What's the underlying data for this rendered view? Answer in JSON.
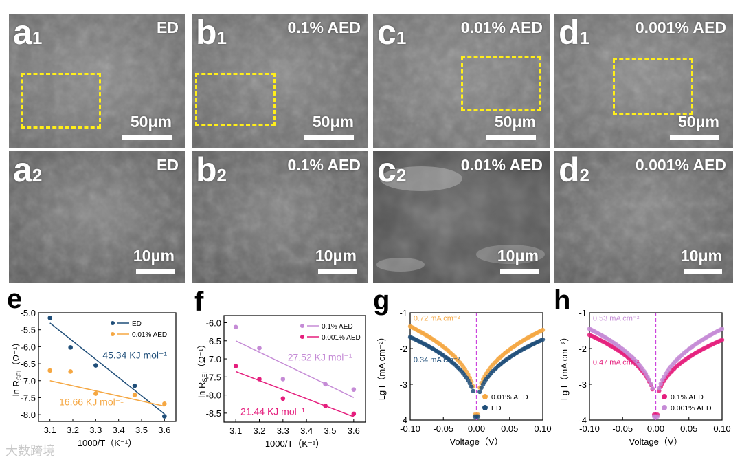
{
  "sem_panels": [
    {
      "letter": "a",
      "sub": "1",
      "condition": "ED",
      "scale": "50μm"
    },
    {
      "letter": "b",
      "sub": "1",
      "condition": "0.1% AED",
      "scale": "50μm"
    },
    {
      "letter": "c",
      "sub": "1",
      "condition": "0.01% AED",
      "scale": "50μm"
    },
    {
      "letter": "d",
      "sub": "1",
      "condition": "0.001% AED",
      "scale": "50μm"
    },
    {
      "letter": "a",
      "sub": "2",
      "condition": "ED",
      "scale": "10μm"
    },
    {
      "letter": "b",
      "sub": "2",
      "condition": "0.1% AED",
      "scale": "10μm"
    },
    {
      "letter": "c",
      "sub": "2",
      "condition": "0.01% AED",
      "scale": "10μm"
    },
    {
      "letter": "d",
      "sub": "2",
      "condition": "0.001% AED",
      "scale": "10μm"
    }
  ],
  "colors": {
    "navy": "#1f4e79",
    "orange": "#f5a742",
    "violet": "#c58bd6",
    "magenta": "#e51e7d",
    "guide": "#cc44dd",
    "roi": "#ffee1a"
  },
  "watermark": "大数跨境",
  "chart_data": [
    {
      "panel": "e",
      "type": "scatter",
      "xlabel": "1000/T（K⁻¹）",
      "ylabel_main": "ln R",
      "ylabel_sub": "SEI",
      "ylabel_unit": "（Ω⁻¹）",
      "xlim": [
        3.05,
        3.65
      ],
      "ylim": [
        -8.2,
        -5.0
      ],
      "xticks": [
        "3.1",
        "3.2",
        "3.3",
        "3.4",
        "3.5",
        "3.6"
      ],
      "xtick_values": [
        3.1,
        3.2,
        3.3,
        3.4,
        3.5,
        3.6
      ],
      "yticks": [
        "-5.0",
        "-5.5",
        "-6.0",
        "-6.5",
        "-7.0",
        "-7.5",
        "-8.0"
      ],
      "ytick_values": [
        -5.0,
        -5.5,
        -6.0,
        -6.5,
        -7.0,
        -7.5,
        -8.0
      ],
      "series": [
        {
          "name": "ED",
          "color": "#1f4e79",
          "x": [
            3.1,
            3.19,
            3.3,
            3.47,
            3.6
          ],
          "y": [
            -5.15,
            -6.02,
            -6.55,
            -7.15,
            -8.05
          ],
          "fit": [
            [
              3.1,
              -5.3
            ],
            [
              3.6,
              -7.98
            ]
          ]
        },
        {
          "name": "0.01% AED",
          "color": "#f5a742",
          "x": [
            3.1,
            3.19,
            3.3,
            3.47,
            3.6
          ],
          "y": [
            -6.7,
            -6.73,
            -7.38,
            -7.42,
            -7.68
          ],
          "fit": [
            [
              3.1,
              -7.0
            ],
            [
              3.6,
              -7.75
            ]
          ]
        }
      ],
      "annotations": [
        {
          "text": "45.34 KJ mol⁻¹",
          "color": "#1f4e79",
          "x": 3.33,
          "y": -6.35
        },
        {
          "text": "16.66 KJ mol⁻¹",
          "color": "#f5a742",
          "x": 3.14,
          "y": -7.72
        }
      ]
    },
    {
      "panel": "f",
      "type": "scatter",
      "xlabel": "1000/T（K⁻¹）",
      "ylabel_main": "ln R",
      "ylabel_sub": "SEI",
      "ylabel_unit": "（Ω⁻¹）",
      "xlim": [
        3.05,
        3.65
      ],
      "ylim": [
        -8.75,
        -5.8
      ],
      "xticks": [
        "3.1",
        "3.2",
        "3.3",
        "3.4",
        "3.5",
        "3.6"
      ],
      "xtick_values": [
        3.1,
        3.2,
        3.3,
        3.4,
        3.5,
        3.6
      ],
      "yticks": [
        "-6.0",
        "-6.5",
        "-7.0",
        "-7.5",
        "-8.0",
        "-8.5"
      ],
      "ytick_values": [
        -6.0,
        -6.5,
        -7.0,
        -7.5,
        -8.0,
        -8.5
      ],
      "series": [
        {
          "name": "0.1% AED",
          "color": "#c58bd6",
          "x": [
            3.1,
            3.2,
            3.3,
            3.48,
            3.6
          ],
          "y": [
            -6.12,
            -6.7,
            -7.56,
            -7.7,
            -7.85
          ],
          "fit": [
            [
              3.1,
              -6.5
            ],
            [
              3.6,
              -8.07
            ]
          ]
        },
        {
          "name": "0.001% AED",
          "color": "#e51e7d",
          "x": [
            3.1,
            3.2,
            3.3,
            3.48,
            3.6
          ],
          "y": [
            -7.2,
            -7.56,
            -8.1,
            -8.3,
            -8.52
          ],
          "fit": [
            [
              3.1,
              -7.35
            ],
            [
              3.6,
              -8.6
            ]
          ]
        }
      ],
      "annotations": [
        {
          "text": "27.52 KJ mol⁻¹",
          "color": "#c58bd6",
          "x": 3.32,
          "y": -7.05
        },
        {
          "text": "21.44 KJ mol⁻¹",
          "color": "#e51e7d",
          "x": 3.12,
          "y": -8.55
        }
      ]
    },
    {
      "panel": "g",
      "type": "scatter",
      "xlabel": "Voltage（V）",
      "ylabel": "Lg I（mA cm⁻²）",
      "xlim": [
        -0.1,
        0.1
      ],
      "ylim": [
        -4.0,
        -1.0
      ],
      "xticks": [
        "-0.10",
        "-0.05",
        "0.00",
        "0.05",
        "0.10"
      ],
      "xtick_values": [
        -0.1,
        -0.05,
        0.0,
        0.05,
        0.1
      ],
      "yticks": [
        "-1",
        "-2",
        "-3",
        "-4"
      ],
      "ytick_values": [
        -1,
        -2,
        -3,
        -4
      ],
      "series": [
        {
          "name": "0.01% AED",
          "color": "#f5a742",
          "i0_log": -1.35,
          "i0_label": "0.72 mA cm⁻²",
          "left_end": -1.38,
          "right_end": -1.48,
          "min_log": -3.85
        },
        {
          "name": "ED",
          "color": "#1f4e79",
          "i0_log": -1.7,
          "i0_label": "0.34 mA cm⁻²",
          "left_end": -1.68,
          "right_end": -1.75,
          "min_log": -3.9
        }
      ],
      "annotations": [
        {
          "text": "0.72 mA cm⁻²",
          "color": "#f5a742",
          "x": -0.095,
          "y": -1.22
        },
        {
          "text": "0.34 mA cm⁻²",
          "color": "#1f4e79",
          "x": -0.095,
          "y": -2.38
        }
      ]
    },
    {
      "panel": "h",
      "type": "scatter",
      "xlabel": "Voltage（V）",
      "ylabel": "Lg I（mA cm⁻²）",
      "xlim": [
        -0.1,
        0.1
      ],
      "ylim": [
        -4.0,
        -1.0
      ],
      "xticks": [
        "-0.10",
        "-0.05",
        "0.00",
        "0.05",
        "0.10"
      ],
      "xtick_values": [
        -0.1,
        -0.05,
        0.0,
        0.05,
        0.1
      ],
      "yticks": [
        "-1",
        "-2",
        "-3",
        "-4"
      ],
      "ytick_values": [
        -1,
        -2,
        -3,
        -4
      ],
      "series": [
        {
          "name": "0.1% AED",
          "color": "#e51e7d",
          "i0_log": -1.65,
          "i0_label": "0.47 mA cm⁻²",
          "left_end": -1.62,
          "right_end": -1.76,
          "min_log": -3.85
        },
        {
          "name": "0.001% AED",
          "color": "#c58bd6",
          "i0_log": -1.45,
          "i0_label": "0.53 mA cm⁻²",
          "left_end": -1.45,
          "right_end": -1.45,
          "min_log": -3.9
        }
      ],
      "annotations": [
        {
          "text": "0.53 mA cm⁻²",
          "color": "#c58bd6",
          "x": -0.095,
          "y": -1.22
        },
        {
          "text": "0.47 mA cm⁻²",
          "color": "#e51e7d",
          "x": -0.095,
          "y": -2.45
        }
      ]
    }
  ]
}
